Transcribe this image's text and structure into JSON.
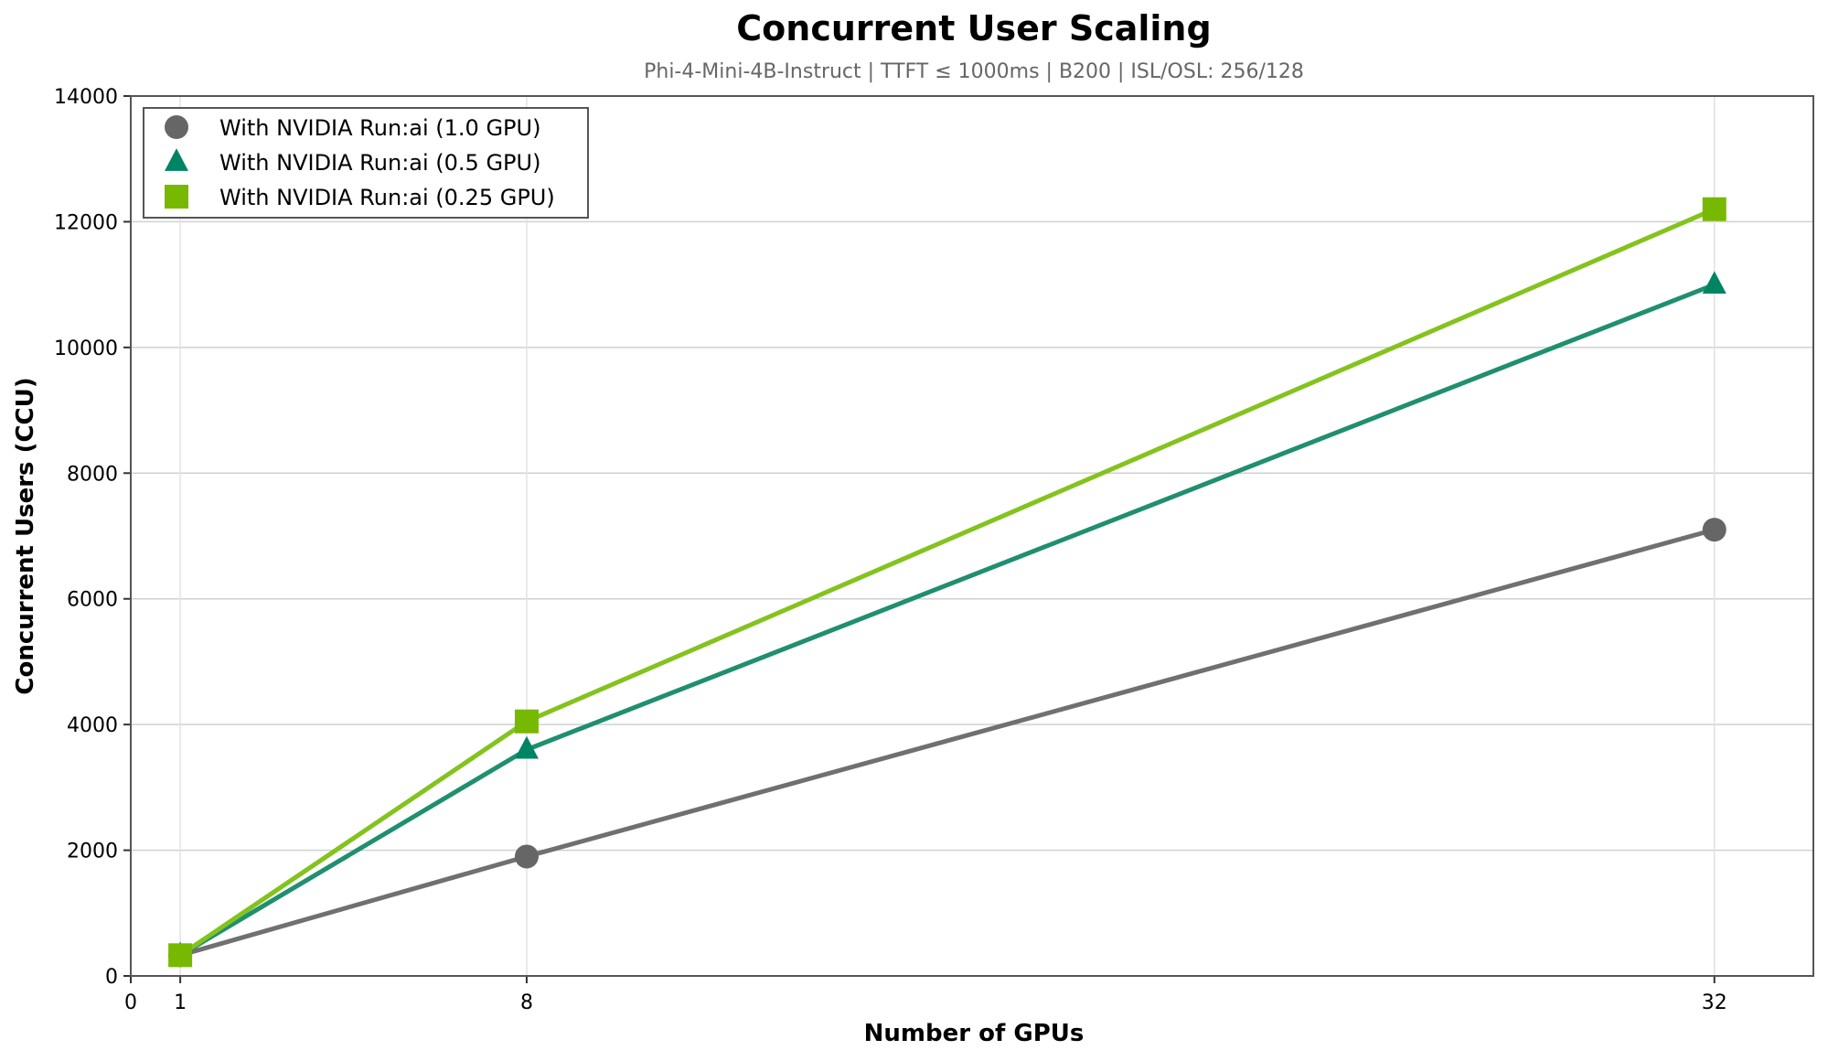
{
  "chart_data": {
    "type": "line",
    "title": "Concurrent User Scaling",
    "subtitle": "Phi-4-Mini-4B-Instruct | TTFT ≤ 1000ms | B200 | ISL/OSL: 256/128",
    "xlabel": "Number of GPUs",
    "ylabel": "Concurrent Users (CCU)",
    "x": [
      1,
      8,
      32
    ],
    "xticks": [
      0,
      1,
      8,
      32
    ],
    "yticks": [
      0,
      2000,
      4000,
      6000,
      8000,
      10000,
      12000,
      14000
    ],
    "xlim": [
      0,
      34
    ],
    "ylim": [
      0,
      14000
    ],
    "grid": true,
    "legend_position": "upper left",
    "series": [
      {
        "name": "With NVIDIA Run:ai (1.0 GPU)",
        "marker": "circle",
        "color": "#666666",
        "line_color": "#707070",
        "values": [
          330,
          1900,
          7100
        ]
      },
      {
        "name": "With NVIDIA Run:ai (0.5 GPU)",
        "marker": "triangle",
        "color": "#008564",
        "line_color": "#1f8f70",
        "values": [
          330,
          3600,
          11000
        ]
      },
      {
        "name": "With NVIDIA Run:ai (0.25 GPU)",
        "marker": "square",
        "color": "#76b900",
        "line_color": "#84c31e",
        "values": [
          330,
          4050,
          12200
        ]
      }
    ]
  }
}
